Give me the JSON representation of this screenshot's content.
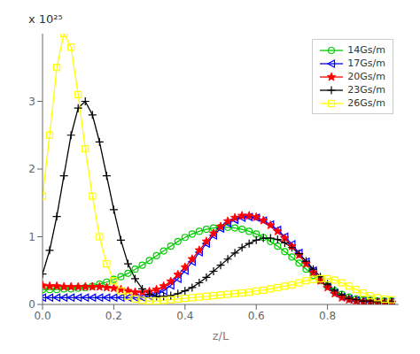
{
  "chart_data": {
    "type": "line",
    "xlabel": "z/L",
    "annotation": "x 10²⁵",
    "x": [
      0.0,
      0.02,
      0.04,
      0.06,
      0.08,
      0.1,
      0.12,
      0.14,
      0.16,
      0.18,
      0.2,
      0.22,
      0.24,
      0.26,
      0.28,
      0.3,
      0.32,
      0.34,
      0.36,
      0.38,
      0.4,
      0.42,
      0.44,
      0.46,
      0.48,
      0.5,
      0.52,
      0.54,
      0.56,
      0.58,
      0.6,
      0.62,
      0.64,
      0.66,
      0.68,
      0.7,
      0.72,
      0.74,
      0.76,
      0.78,
      0.8,
      0.82,
      0.84,
      0.86,
      0.88,
      0.9,
      0.92,
      0.94,
      0.96,
      0.98
    ],
    "xlim": [
      0,
      1.0
    ],
    "xticks": [
      {
        "value": 0,
        "label": "0.0"
      },
      0.2,
      0.4,
      0.6,
      0.8
    ],
    "ylim": [
      0,
      4.0
    ],
    "yticks": [
      0,
      1,
      2,
      3
    ],
    "grid": false,
    "legend": "upper right",
    "series": [
      {
        "name": "14Gs/m",
        "color": "#00cc00",
        "marker": "circle",
        "values": [
          0.22,
          0.22,
          0.22,
          0.23,
          0.23,
          0.24,
          0.25,
          0.27,
          0.3,
          0.33,
          0.37,
          0.41,
          0.46,
          0.52,
          0.58,
          0.65,
          0.72,
          0.79,
          0.86,
          0.93,
          0.99,
          1.04,
          1.08,
          1.11,
          1.13,
          1.14,
          1.14,
          1.13,
          1.11,
          1.08,
          1.04,
          0.99,
          0.93,
          0.86,
          0.78,
          0.7,
          0.61,
          0.52,
          0.43,
          0.35,
          0.27,
          0.2,
          0.15,
          0.11,
          0.08,
          0.07,
          0.06,
          0.05,
          0.05,
          0.05
        ]
      },
      {
        "name": "17Gs/m",
        "color": "#0000ff",
        "marker": "triangle-left",
        "values": [
          0.1,
          0.1,
          0.1,
          0.1,
          0.1,
          0.1,
          0.1,
          0.1,
          0.1,
          0.1,
          0.1,
          0.1,
          0.1,
          0.1,
          0.1,
          0.12,
          0.15,
          0.2,
          0.28,
          0.38,
          0.5,
          0.63,
          0.77,
          0.9,
          1.02,
          1.12,
          1.2,
          1.25,
          1.28,
          1.29,
          1.28,
          1.24,
          1.18,
          1.1,
          1.0,
          0.89,
          0.76,
          0.63,
          0.5,
          0.37,
          0.26,
          0.17,
          0.11,
          0.08,
          0.06,
          0.05,
          0.04,
          0.04,
          0.04,
          0.04
        ]
      },
      {
        "name": "20Gs/m",
        "color": "#ff0000",
        "marker": "star",
        "values": [
          0.28,
          0.27,
          0.27,
          0.26,
          0.26,
          0.26,
          0.26,
          0.26,
          0.26,
          0.25,
          0.24,
          0.22,
          0.2,
          0.18,
          0.18,
          0.19,
          0.22,
          0.27,
          0.34,
          0.44,
          0.55,
          0.67,
          0.8,
          0.93,
          1.05,
          1.15,
          1.23,
          1.28,
          1.31,
          1.31,
          1.29,
          1.24,
          1.17,
          1.08,
          0.98,
          0.86,
          0.73,
          0.6,
          0.47,
          0.35,
          0.25,
          0.16,
          0.1,
          0.07,
          0.05,
          0.04,
          0.04,
          0.03,
          0.03,
          0.03
        ]
      },
      {
        "name": "23Gs/m",
        "color": "#000000",
        "marker": "plus",
        "values": [
          0.45,
          0.8,
          1.3,
          1.9,
          2.5,
          2.9,
          3.0,
          2.8,
          2.4,
          1.9,
          1.4,
          0.95,
          0.6,
          0.38,
          0.23,
          0.15,
          0.12,
          0.12,
          0.13,
          0.16,
          0.2,
          0.25,
          0.32,
          0.4,
          0.49,
          0.58,
          0.67,
          0.76,
          0.84,
          0.9,
          0.95,
          0.98,
          0.98,
          0.96,
          0.91,
          0.84,
          0.75,
          0.64,
          0.52,
          0.41,
          0.3,
          0.21,
          0.14,
          0.09,
          0.07,
          0.05,
          0.05,
          0.04,
          0.04,
          0.04
        ]
      },
      {
        "name": "26Gs/m",
        "color": "#ffff00",
        "marker": "square",
        "values": [
          1.6,
          2.5,
          3.5,
          4.0,
          3.8,
          3.1,
          2.3,
          1.6,
          1.0,
          0.6,
          0.35,
          0.2,
          0.12,
          0.08,
          0.06,
          0.05,
          0.05,
          0.06,
          0.07,
          0.08,
          0.09,
          0.1,
          0.11,
          0.12,
          0.13,
          0.14,
          0.15,
          0.16,
          0.17,
          0.18,
          0.2,
          0.21,
          0.23,
          0.25,
          0.27,
          0.29,
          0.32,
          0.35,
          0.37,
          0.38,
          0.38,
          0.36,
          0.32,
          0.27,
          0.22,
          0.17,
          0.13,
          0.1,
          0.08,
          0.07
        ]
      }
    ]
  }
}
